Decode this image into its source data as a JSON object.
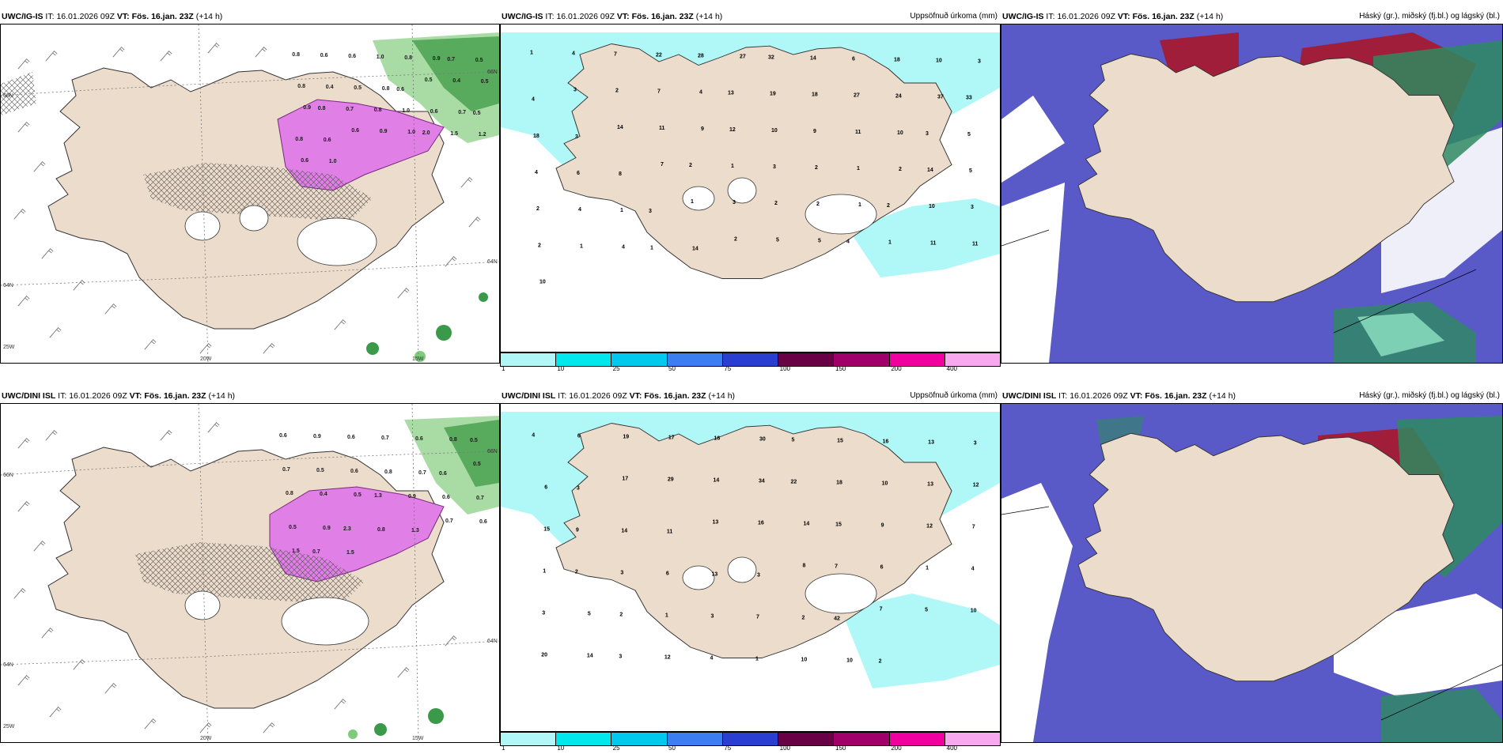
{
  "panels": [
    {
      "model": "UWC/IG-IS",
      "it_label": "IT:",
      "it": "16.01.2026 09Z",
      "vt_label": "VT: Fös. 16.jan. 23Z",
      "lead": "(+14 h)",
      "right": ""
    },
    {
      "model": "UWC/IG-IS",
      "it_label": "IT:",
      "it": "16.01.2026 09Z",
      "vt_label": "VT: Fös. 16.jan. 23Z",
      "lead": "(+14 h)",
      "right": "Uppsöfnuð úrkoma (mm)"
    },
    {
      "model": "UWC/IG-IS",
      "it_label": "IT:",
      "it": "16.01.2026 09Z",
      "vt_label": "VT: Fös. 16.jan. 23Z",
      "lead": "(+14 h)",
      "right": "Háský (gr.), miðský (fj.bl.) og lágský (bl.)"
    },
    {
      "model": "UWC/DINI ISL",
      "it_label": "IT:",
      "it": "16.01.2026 09Z",
      "vt_label": "VT: Fös. 16.jan. 23Z",
      "lead": "(+14 h)",
      "right": ""
    },
    {
      "model": "UWC/DINI ISL",
      "it_label": "IT:",
      "it": "16.01.2026 09Z",
      "vt_label": "VT: Fös. 16.jan. 23Z",
      "lead": "(+14 h)",
      "right": "Uppsöfnuð úrkoma (mm)"
    },
    {
      "model": "UWC/DINI ISL",
      "it_label": "IT:",
      "it": "16.01.2026 09Z",
      "vt_label": "VT: Fös. 16.jan. 23Z",
      "lead": "(+14 h)",
      "right": "Háský (gr.), miðský (fj.bl.) og lágský (bl.)"
    }
  ],
  "legend": {
    "ticks": [
      "1",
      "10",
      "25",
      "50",
      "75",
      "100",
      "150",
      "200",
      "400"
    ],
    "colors": [
      "#b0f7f7",
      "#00e8ee",
      "#00c8ee",
      "#3a7ef0",
      "#2a3fd0",
      "#6a0046",
      "#a0006a",
      "#f000a0",
      "#f8a8ee"
    ]
  },
  "coords_top": {
    "lat_a": "66N",
    "lat_b": "64N",
    "lat_c": "66N",
    "lat_d": "64N",
    "lon_a": "20W",
    "lon_b": "15W",
    "lon_c": "25W"
  },
  "coords_bottom": {
    "lat_a": "66N",
    "lat_b": "64N",
    "lat_c": "66N",
    "lat_d": "64N",
    "lon_a": "20W",
    "lon_b": "15W",
    "lon_c": "25W"
  },
  "precip_top": [
    "1",
    "4",
    "7",
    "22",
    "28",
    "27",
    "32",
    "14",
    "6",
    "18",
    "10",
    "3",
    "4",
    "3",
    "2",
    "7",
    "4",
    "13",
    "19",
    "18",
    "27",
    "24",
    "37",
    "33",
    "18",
    "3",
    "14",
    "11",
    "9",
    "12",
    "10",
    "9",
    "11",
    "10",
    "3",
    "5",
    "4",
    "6",
    "8",
    "7",
    "2",
    "1",
    "3",
    "2",
    "1",
    "2",
    "14",
    "5",
    "2",
    "4",
    "1",
    "3",
    "1",
    "3",
    "2",
    "2",
    "1",
    "2",
    "10",
    "3",
    "2",
    "1",
    "4",
    "1",
    "14",
    "2",
    "5",
    "5",
    "4",
    "1",
    "11",
    "11",
    "10"
  ],
  "precip_bottom": [
    "4",
    "6",
    "19",
    "17",
    "16",
    "30",
    "5",
    "15",
    "16",
    "13",
    "3",
    "6",
    "3",
    "17",
    "29",
    "14",
    "34",
    "22",
    "18",
    "10",
    "13",
    "12",
    "15",
    "9",
    "14",
    "11",
    "13",
    "16",
    "14",
    "15",
    "9",
    "12",
    "7",
    "1",
    "2",
    "3",
    "6",
    "13",
    "3",
    "8",
    "7",
    "6",
    "1",
    "4",
    "3",
    "5",
    "2",
    "1",
    "3",
    "7",
    "2",
    "42",
    "7",
    "5",
    "10",
    "20",
    "14",
    "3",
    "12",
    "4",
    "1",
    "10",
    "10",
    "2"
  ],
  "snow_top": [
    "0.8",
    "0.6",
    "0.6",
    "1.0",
    "0.8",
    "0.9",
    "0.7",
    "0.5",
    "0.8",
    "0.4",
    "0.5",
    "0.8",
    "0.6",
    "0.5",
    "0.4",
    "0.5",
    "0.9",
    "0.8",
    "0.7",
    "0.8",
    "1.0",
    "0.6",
    "0.7",
    "0.5",
    "0.8",
    "0.6",
    "0.6",
    "0.9",
    "1.0",
    "2.0",
    "1.5",
    "1.2",
    "0.6",
    "1.0"
  ],
  "snow_bottom": [
    "0.6",
    "0.9",
    "0.6",
    "0.7",
    "0.6",
    "0.8",
    "0.5",
    "0.7",
    "0.5",
    "0.6",
    "0.8",
    "0.7",
    "0.6",
    "0.5",
    "0.8",
    "0.4",
    "0.5",
    "1.3",
    "0.9",
    "0.6",
    "0.7",
    "0.5",
    "0.9",
    "2.3",
    "0.8",
    "1.3",
    "0.7",
    "0.6",
    "1.5",
    "0.7",
    "1.5"
  ]
}
